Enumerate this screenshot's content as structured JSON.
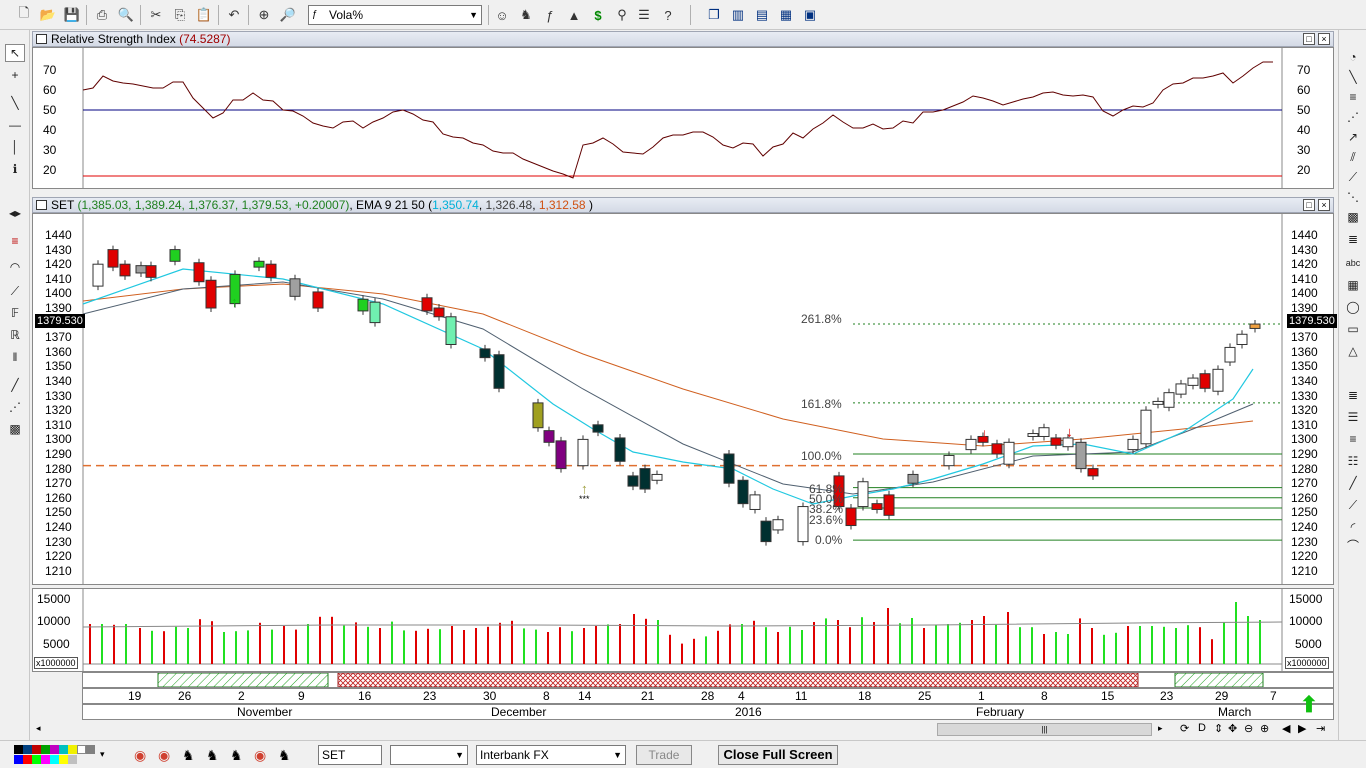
{
  "toolbar": {
    "chart_combo_value": "Vola%"
  },
  "rsi_pane": {
    "title": "Relative Strength Index",
    "value": "(74.5287)",
    "value_color": "#a00000",
    "y_ticks": [
      "70",
      "60",
      "50",
      "40",
      "30",
      "20"
    ],
    "overbought_level": 50,
    "oversold_level": 17
  },
  "price_pane": {
    "symbol": "SET",
    "ohlc": "(1,385.03, 1,389.24, 1,376.37, 1,379.53, +0.20007)",
    "ema_label": "EMA 9 21 50 (",
    "ema_values": [
      "1,350.74",
      "1,326.48",
      "1,312.58"
    ],
    "ema_colors": [
      "#00c0e0",
      "#404040",
      "#e06020"
    ],
    "ema_close": ")",
    "last_price": "1379.530",
    "y_ticks": [
      "1440",
      "1430",
      "1420",
      "1410",
      "1400",
      "1390",
      "1380",
      "1370",
      "1360",
      "1350",
      "1340",
      "1330",
      "1320",
      "1310",
      "1300",
      "1290",
      "1280",
      "1270",
      "1260",
      "1250",
      "1240",
      "1230",
      "1220",
      "1210"
    ],
    "fib_labels": [
      "261.8%",
      "161.8%",
      "100.0%",
      "61.8%",
      "50.0%",
      "38.2%",
      "23.6%",
      "0.0%"
    ],
    "annotation": "***"
  },
  "volume_pane": {
    "y_ticks": [
      "15000",
      "10000",
      "5000"
    ],
    "unit_label": "x1000000"
  },
  "time_axis": {
    "day_ticks": [
      "19",
      "26",
      "2",
      "9",
      "16",
      "23",
      "30",
      "8",
      "14",
      "21",
      "28",
      "4",
      "11",
      "18",
      "25",
      "1",
      "8",
      "15",
      "23",
      "29",
      "7"
    ],
    "month_ticks": [
      "November",
      "December",
      "2016",
      "February",
      "March"
    ]
  },
  "status_bar": {
    "symbol_field": "SET",
    "second_field": "",
    "data_source": "Interbank FX",
    "trade_button": "Trade",
    "close_fullscreen_button": "Close Full Screen"
  },
  "chart_data": {
    "type": "candlestick",
    "y_range": [
      1205,
      1445
    ],
    "ema_lines": [
      "EMA 9",
      "EMA 21",
      "EMA 50"
    ],
    "rsi_range": [
      10,
      80
    ]
  }
}
